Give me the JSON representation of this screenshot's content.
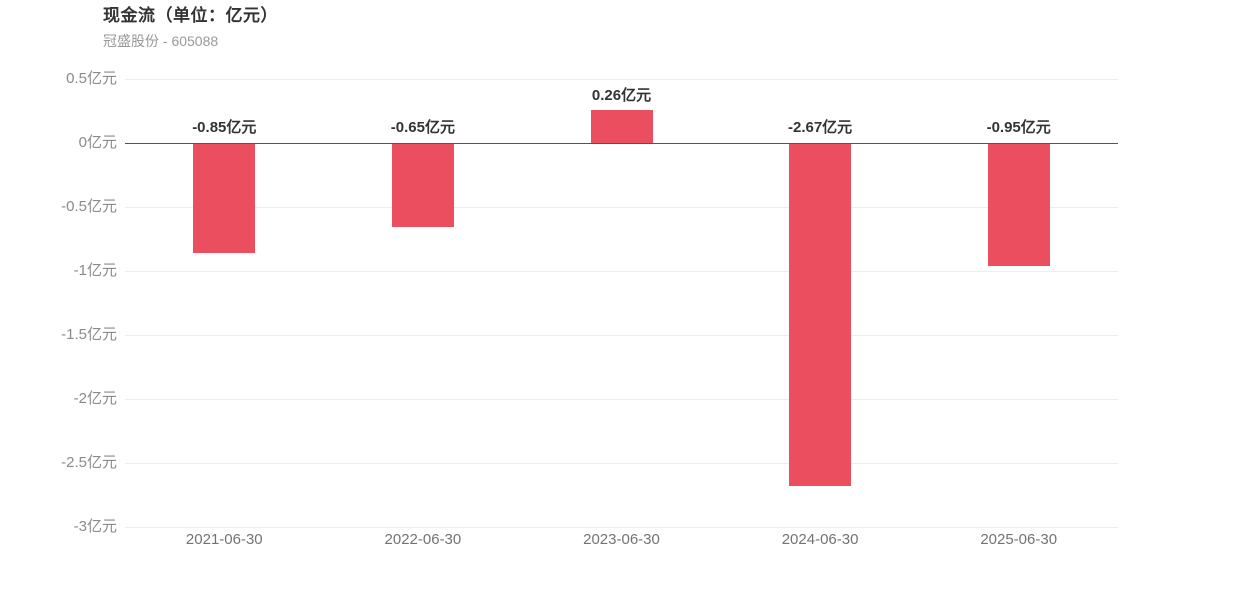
{
  "header": {
    "title": "现金流（单位：亿元）",
    "subtitle": "冠盛股份 - 605088"
  },
  "colors": {
    "bar": "#ea4e5f",
    "gridline": "#ededed",
    "zero_line": "#545454",
    "y_tick_label": "#8a8a8a",
    "x_tick_label": "#737373",
    "value_label": "#333333",
    "title": "#333333",
    "subtitle": "#999999",
    "background": "#ffffff"
  },
  "chart_data": {
    "type": "bar",
    "title": "现金流（单位：亿元）",
    "subtitle": "冠盛股份 - 605088",
    "unit": "亿元",
    "categories": [
      "2021-06-30",
      "2022-06-30",
      "2023-06-30",
      "2024-06-30",
      "2025-06-30"
    ],
    "values": [
      -0.85,
      -0.65,
      0.26,
      -2.67,
      -0.95
    ],
    "value_labels": [
      "-0.85亿元",
      "-0.65亿元",
      "0.26亿元",
      "-2.67亿元",
      "-0.95亿元"
    ],
    "y_ticks": [
      0.5,
      0,
      -0.5,
      -1,
      -1.5,
      -2,
      -2.5,
      -3
    ],
    "y_tick_labels": [
      "0.5亿元",
      "0亿元",
      "-0.5亿元",
      "-1亿元",
      "-1.5亿元",
      "-2亿元",
      "-2.5亿元",
      "-3亿元"
    ],
    "ylim": [
      -3,
      0.5
    ],
    "xlabel": "",
    "ylabel": "",
    "grid": true,
    "legend": false,
    "bar_color": "#ea4e5f"
  }
}
